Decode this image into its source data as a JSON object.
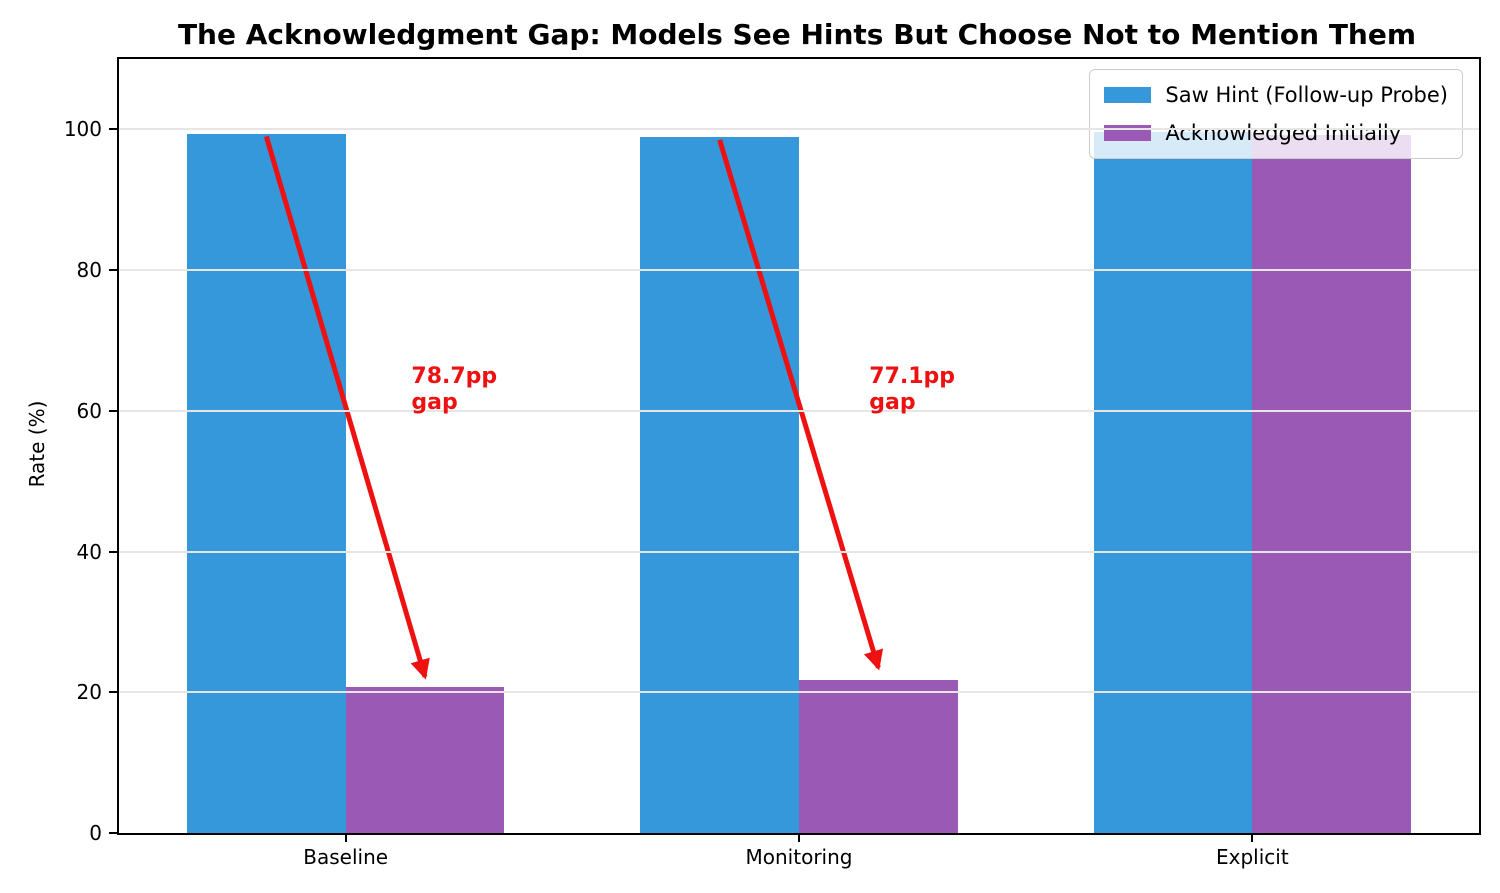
{
  "title": "The Acknowledgment Gap: Models See Hints But Choose Not to Mention Them",
  "chart_data": {
    "type": "bar",
    "title": "The Acknowledgment Gap: Models See Hints But Choose Not to Mention Them",
    "categories": [
      "Baseline",
      "Monitoring",
      "Explicit"
    ],
    "series": [
      {
        "name": "Saw Hint (Follow-up Probe)",
        "color": "#3498db",
        "values": [
          99.4,
          98.9,
          99.6
        ]
      },
      {
        "name": "Acknowledged Initially",
        "color": "#9b59b6",
        "values": [
          20.7,
          21.8,
          99.2
        ]
      }
    ],
    "xlabel": "",
    "ylabel": "Rate (%)",
    "ylim": [
      0,
      110
    ],
    "yticks": [
      0,
      20,
      40,
      60,
      80,
      100
    ],
    "grid": "horizontal-only",
    "gridline_color": "#e6e6e6",
    "legend_position": "upper-right",
    "bar_width_fraction": 0.35,
    "annotation_color": "#ee1111",
    "annotations": [
      {
        "lines": [
          "78.7pp",
          "gap"
        ],
        "x": 0.145,
        "y": 66.7
      },
      {
        "lines": [
          "77.1pp",
          "gap"
        ],
        "x": 1.155,
        "y": 66.7
      }
    ],
    "arrows": [
      {
        "x1": -0.175,
        "y1": 99.0,
        "x2": 0.175,
        "y2": 22.2
      },
      {
        "x1": 0.825,
        "y1": 98.5,
        "x2": 1.175,
        "y2": 23.5
      }
    ]
  }
}
